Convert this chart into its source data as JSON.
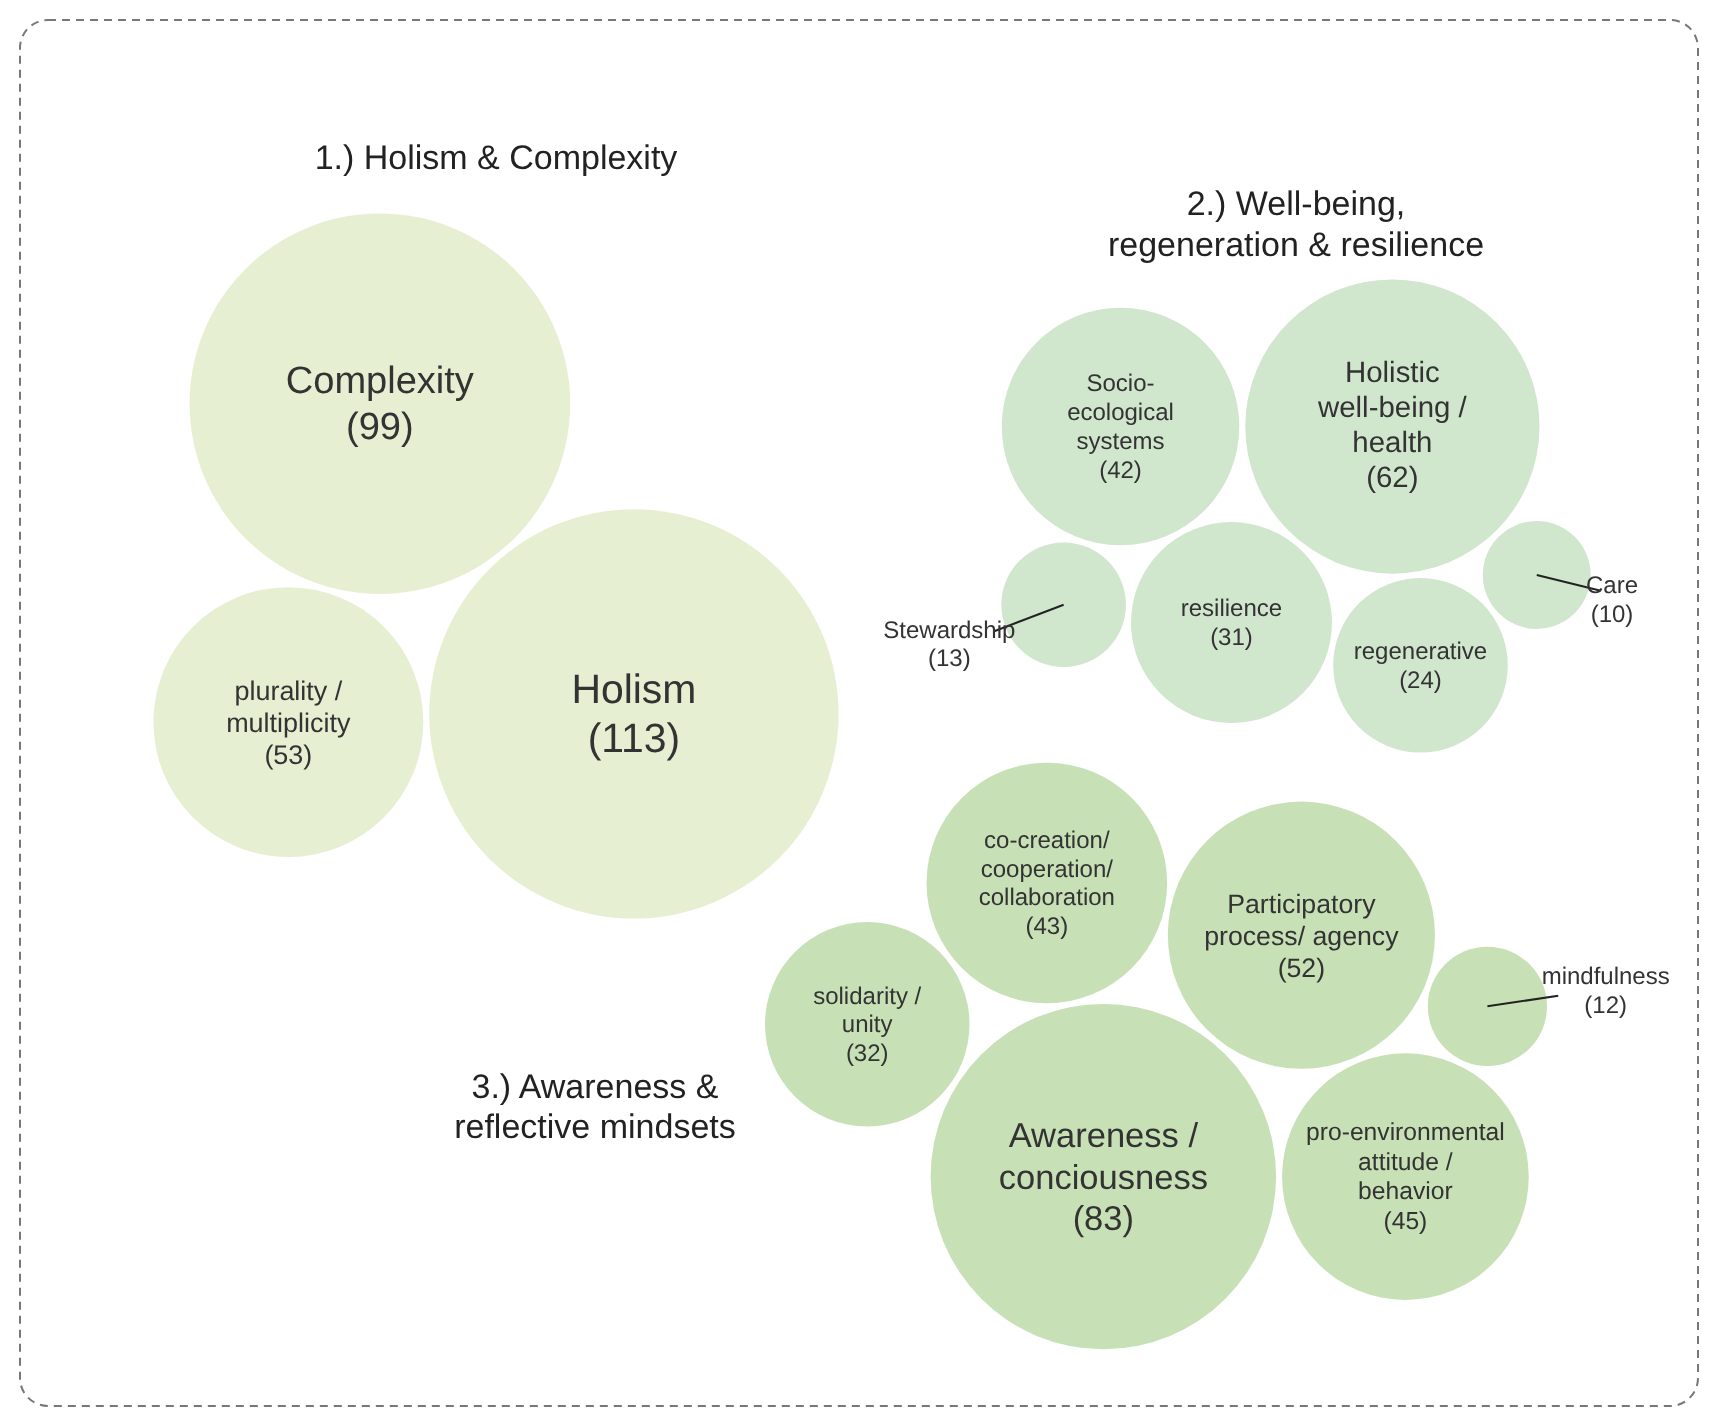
{
  "chart_data": {
    "type": "other",
    "categories": [
      "Holism",
      "plurality /\nmultiplicity",
      "Complexity",
      "Holistic\nwell-being /\nhealth",
      "Socio-\necological\nsystems",
      "resilience",
      "regenerative",
      "Stewardship",
      "Care",
      "Awareness /\nconciousness",
      "pro-environmental\nattitude /\nbehavior",
      "Participatory\nprocess/ agency",
      "co-creation/\ncooperation/\ncollaboration",
      "solidarity /\nunity",
      "mindfulness"
    ],
    "series": [
      {
        "name": "1.) Holism & Complexity",
        "color": "#e6efd2",
        "values": [
          113,
          53,
          99,
          null,
          null,
          null,
          null,
          null,
          null,
          null,
          null,
          null,
          null,
          null,
          null
        ],
        "value_labels": [
          "(113)",
          "(53)",
          "(99)",
          null,
          null,
          null,
          null,
          null,
          null,
          null,
          null,
          null,
          null,
          null,
          null
        ]
      },
      {
        "name": "2.) Well-being,\nregeneration & resilience",
        "color": "#d0e6cd",
        "values": [
          null,
          null,
          null,
          62,
          42,
          31,
          24,
          13,
          10,
          null,
          null,
          null,
          null,
          null,
          null
        ],
        "value_labels": [
          null,
          null,
          null,
          "(62)",
          "(42)",
          "(31)",
          "(24)",
          "(13)",
          "(10)",
          null,
          null,
          null,
          null,
          null,
          null
        ]
      },
      {
        "name": "3.) Awareness &\nreflective mindsets",
        "color": "#c7e0b6",
        "values": [
          null,
          null,
          null,
          null,
          null,
          null,
          null,
          null,
          null,
          83,
          45,
          52,
          43,
          32,
          12
        ],
        "value_labels": [
          null,
          null,
          null,
          null,
          null,
          null,
          null,
          null,
          null,
          "(83)",
          "(45)",
          "(52)",
          "(43)",
          "(32)",
          "(12)"
        ]
      }
    ]
  }
}
